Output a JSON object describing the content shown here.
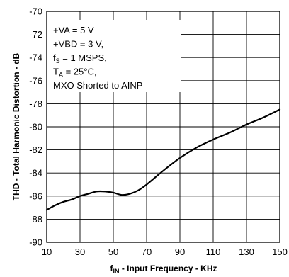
{
  "chart_data": {
    "type": "line",
    "xlabel": "f",
    "xlabel_sub": "IN",
    "xlabel_rest": " - Input Frequency - KHz",
    "ylabel": "THD - Total Harmonic Distortion - dB",
    "xlim": [
      10,
      150
    ],
    "ylim": [
      -90,
      -70
    ],
    "x_ticks": [
      10,
      30,
      50,
      70,
      90,
      110,
      130,
      150
    ],
    "y_ticks": [
      -70,
      -72,
      -74,
      -76,
      -78,
      -80,
      -82,
      -84,
      -86,
      -88,
      -90
    ],
    "grid": true,
    "series": [
      {
        "x": [
          10,
          15,
          20,
          25,
          30,
          35,
          40,
          45,
          50,
          55,
          60,
          65,
          70,
          80,
          90,
          100,
          110,
          120,
          130,
          140,
          150
        ],
        "y": [
          -87.2,
          -86.8,
          -86.5,
          -86.3,
          -86.0,
          -85.8,
          -85.6,
          -85.6,
          -85.7,
          -85.9,
          -85.8,
          -85.5,
          -85.0,
          -83.8,
          -82.7,
          -81.8,
          -81.1,
          -80.5,
          -79.8,
          -79.2,
          -78.5
        ]
      }
    ],
    "annotation": {
      "lines": [
        {
          "text": "+VA = 5 V"
        },
        {
          "text": "+VBD = 3 V,"
        },
        {
          "pre": "f",
          "sub": "S",
          "post": " = 1 MSPS,"
        },
        {
          "pre": "T",
          "sub": "A",
          "post": " = 25°C,"
        },
        {
          "text": "MXO Shorted to AINP"
        }
      ]
    }
  }
}
